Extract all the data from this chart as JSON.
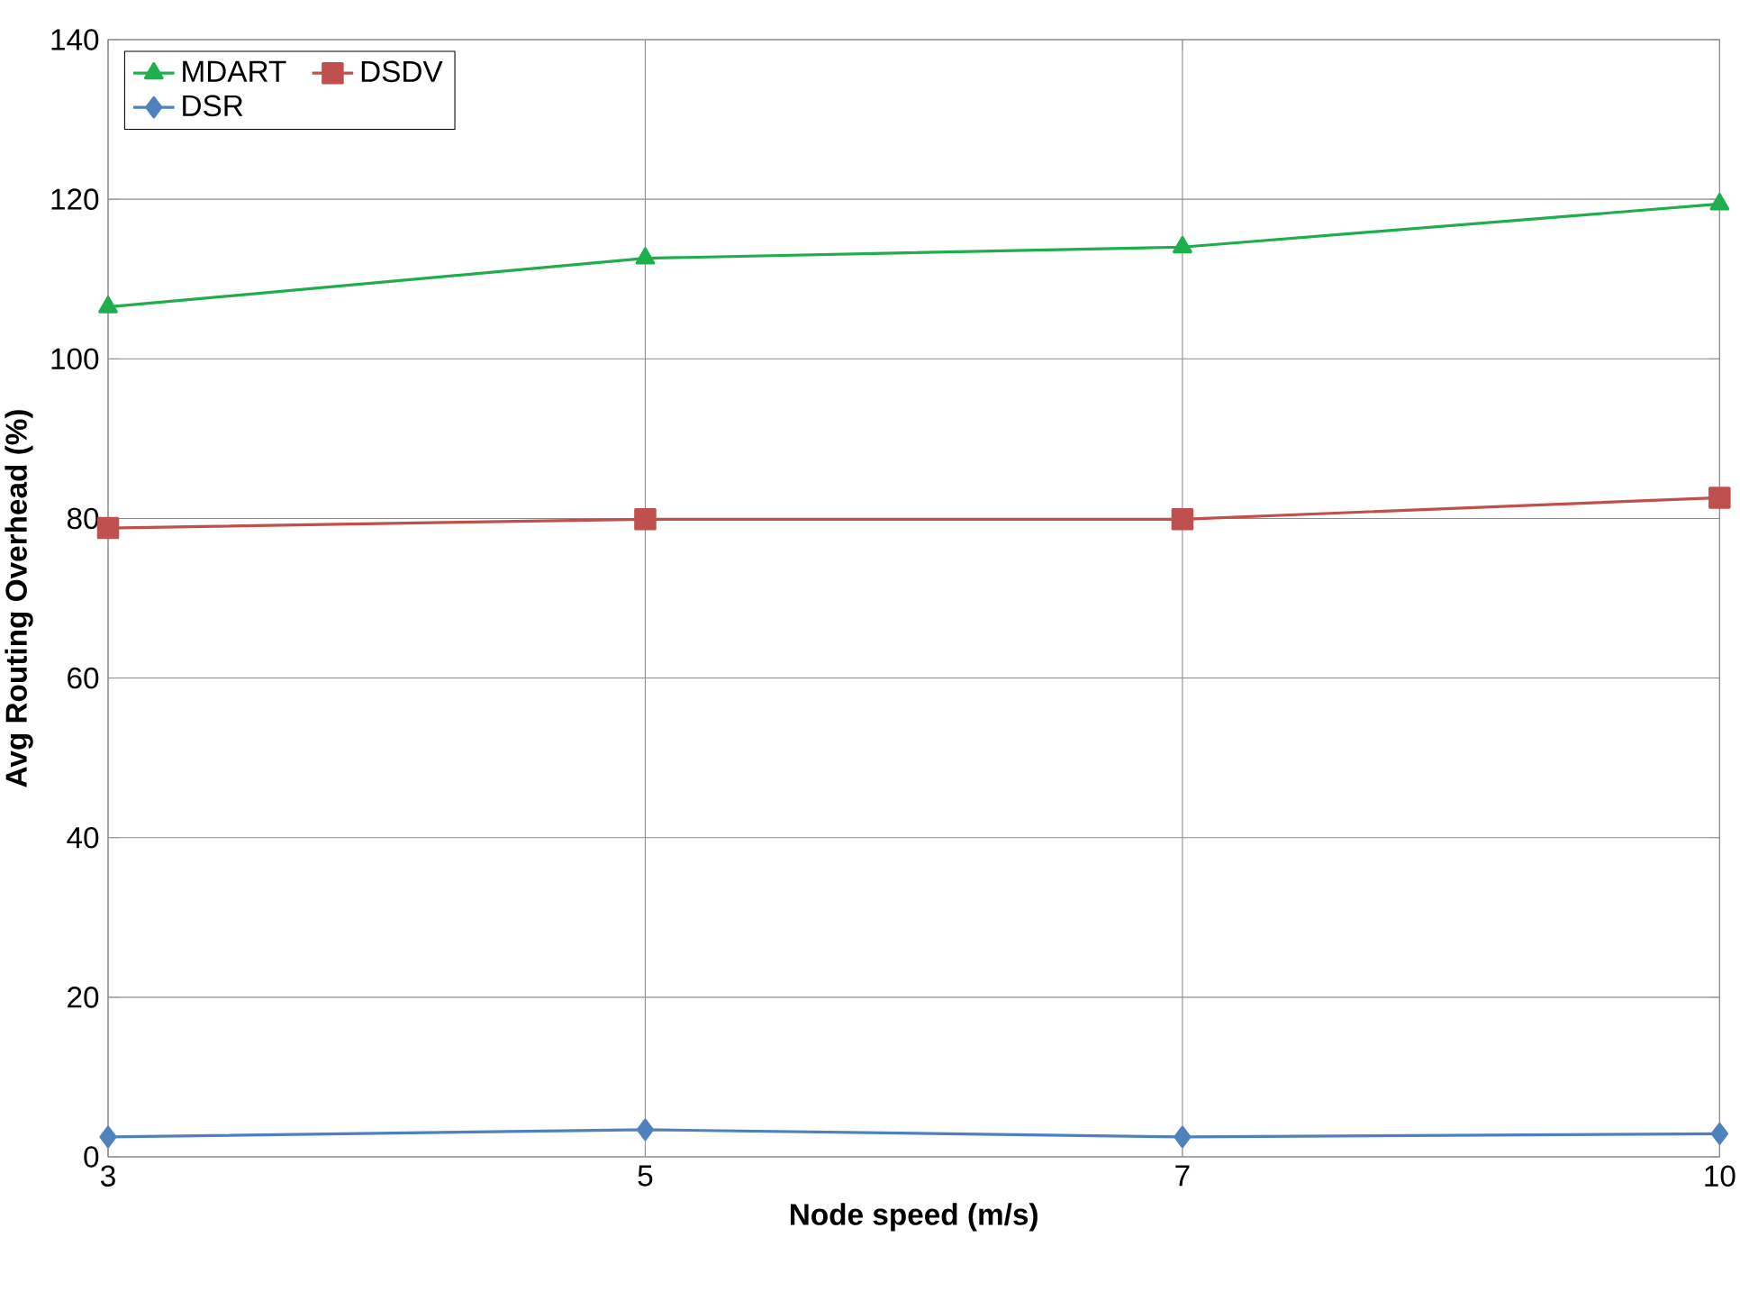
{
  "chart_data": {
    "type": "line",
    "xlabel": "Node speed (m/s)",
    "ylabel": "Avg Routing Overhead (%)",
    "categories": [
      "3",
      "5",
      "7",
      "10"
    ],
    "series": [
      {
        "name": "MDART",
        "color": "#1fae4e",
        "marker": "triangle",
        "values": [
          106.5,
          112.6,
          114,
          119.4
        ]
      },
      {
        "name": "DSDV",
        "color": "#c0504d",
        "marker": "square",
        "values": [
          78.8,
          79.9,
          79.9,
          82.6
        ]
      },
      {
        "name": "DSR",
        "color": "#4f81bd",
        "marker": "diamond",
        "values": [
          2.5,
          3.4,
          2.5,
          2.9
        ]
      }
    ],
    "ylim": [
      0,
      140
    ],
    "yticks": [
      0,
      20,
      40,
      60,
      80,
      100,
      120,
      140
    ],
    "grid": true,
    "legend": "top left",
    "line_style": "solid"
  }
}
